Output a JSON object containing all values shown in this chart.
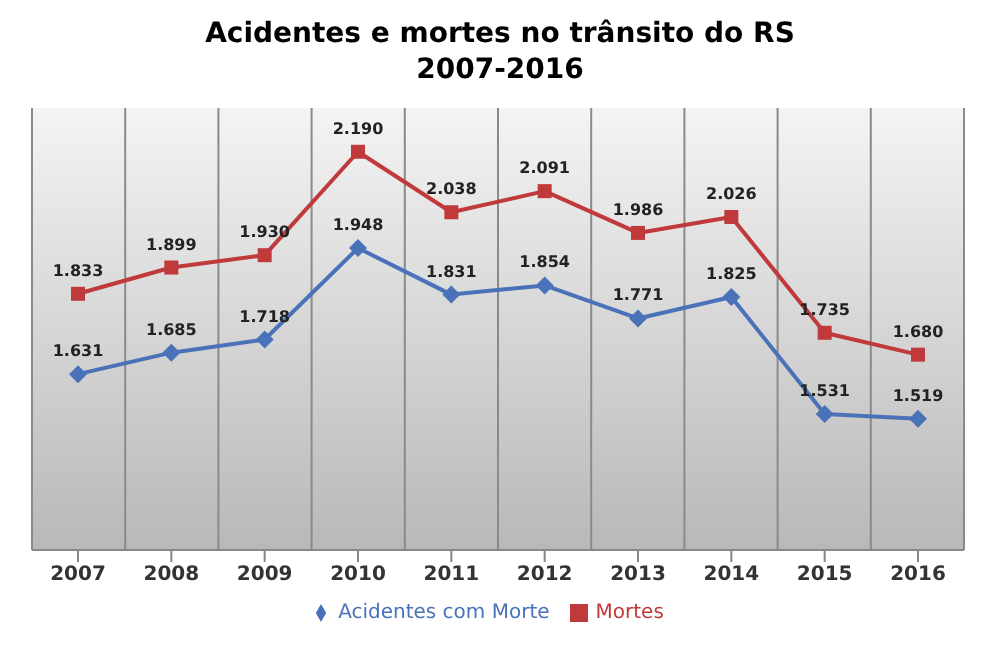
{
  "chart_data": {
    "type": "line",
    "title": "Acidentes e mortes no trânsito do RS",
    "subtitle": "2007-2016",
    "categories": [
      "2007",
      "2008",
      "2009",
      "2010",
      "2011",
      "2012",
      "2013",
      "2014",
      "2015",
      "2016"
    ],
    "series": [
      {
        "name": "Acidentes com Morte",
        "color": "#4a72b8",
        "marker": "diamond",
        "values": [
          1631,
          1685,
          1718,
          1948,
          1831,
          1854,
          1771,
          1825,
          1531,
          1519
        ],
        "value_labels": [
          "1.631",
          "1.685",
          "1.718",
          "1.948",
          "1.831",
          "1.854",
          "1.771",
          "1.825",
          "1.531",
          "1.519"
        ]
      },
      {
        "name": "Mortes",
        "color": "#c0393b",
        "marker": "square",
        "values": [
          1833,
          1899,
          1930,
          2190,
          2038,
          2091,
          1986,
          2026,
          1735,
          1680
        ],
        "value_labels": [
          "1.833",
          "1.899",
          "1.930",
          "2.190",
          "2.038",
          "2.091",
          "1.986",
          "2.026",
          "1.735",
          "1.680"
        ]
      }
    ],
    "grid": "x",
    "legend": "bottom",
    "tick_labels": "x"
  }
}
